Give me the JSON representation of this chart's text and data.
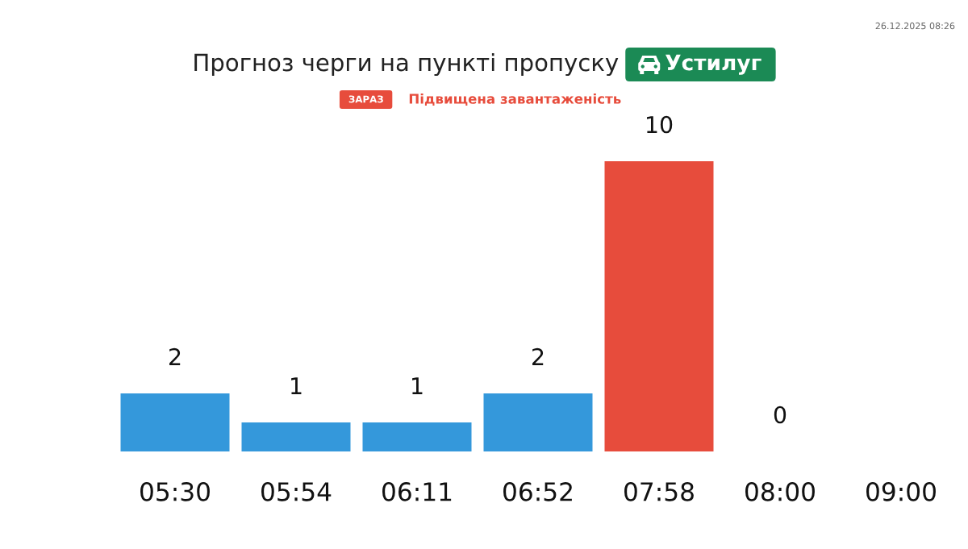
{
  "chart_data": {
    "type": "bar",
    "title": "Прогноз черги на пункті пропуску",
    "subtitle": "Устилуг",
    "annotations": [
      "26.12.2025 08:26",
      "ЗАРАЗ",
      "Підвищена завантаженість"
    ],
    "categories": [
      "05:30",
      "05:54",
      "06:11",
      "06:52",
      "07:58",
      "08:00",
      "09:00"
    ],
    "values": [
      2,
      1,
      1,
      2,
      10,
      0,
      null
    ],
    "colors": [
      "#3498db",
      "#3498db",
      "#3498db",
      "#3498db",
      "#e74c3c",
      null,
      null
    ],
    "data_labels": true,
    "tick_labels": "x"
  }
}
